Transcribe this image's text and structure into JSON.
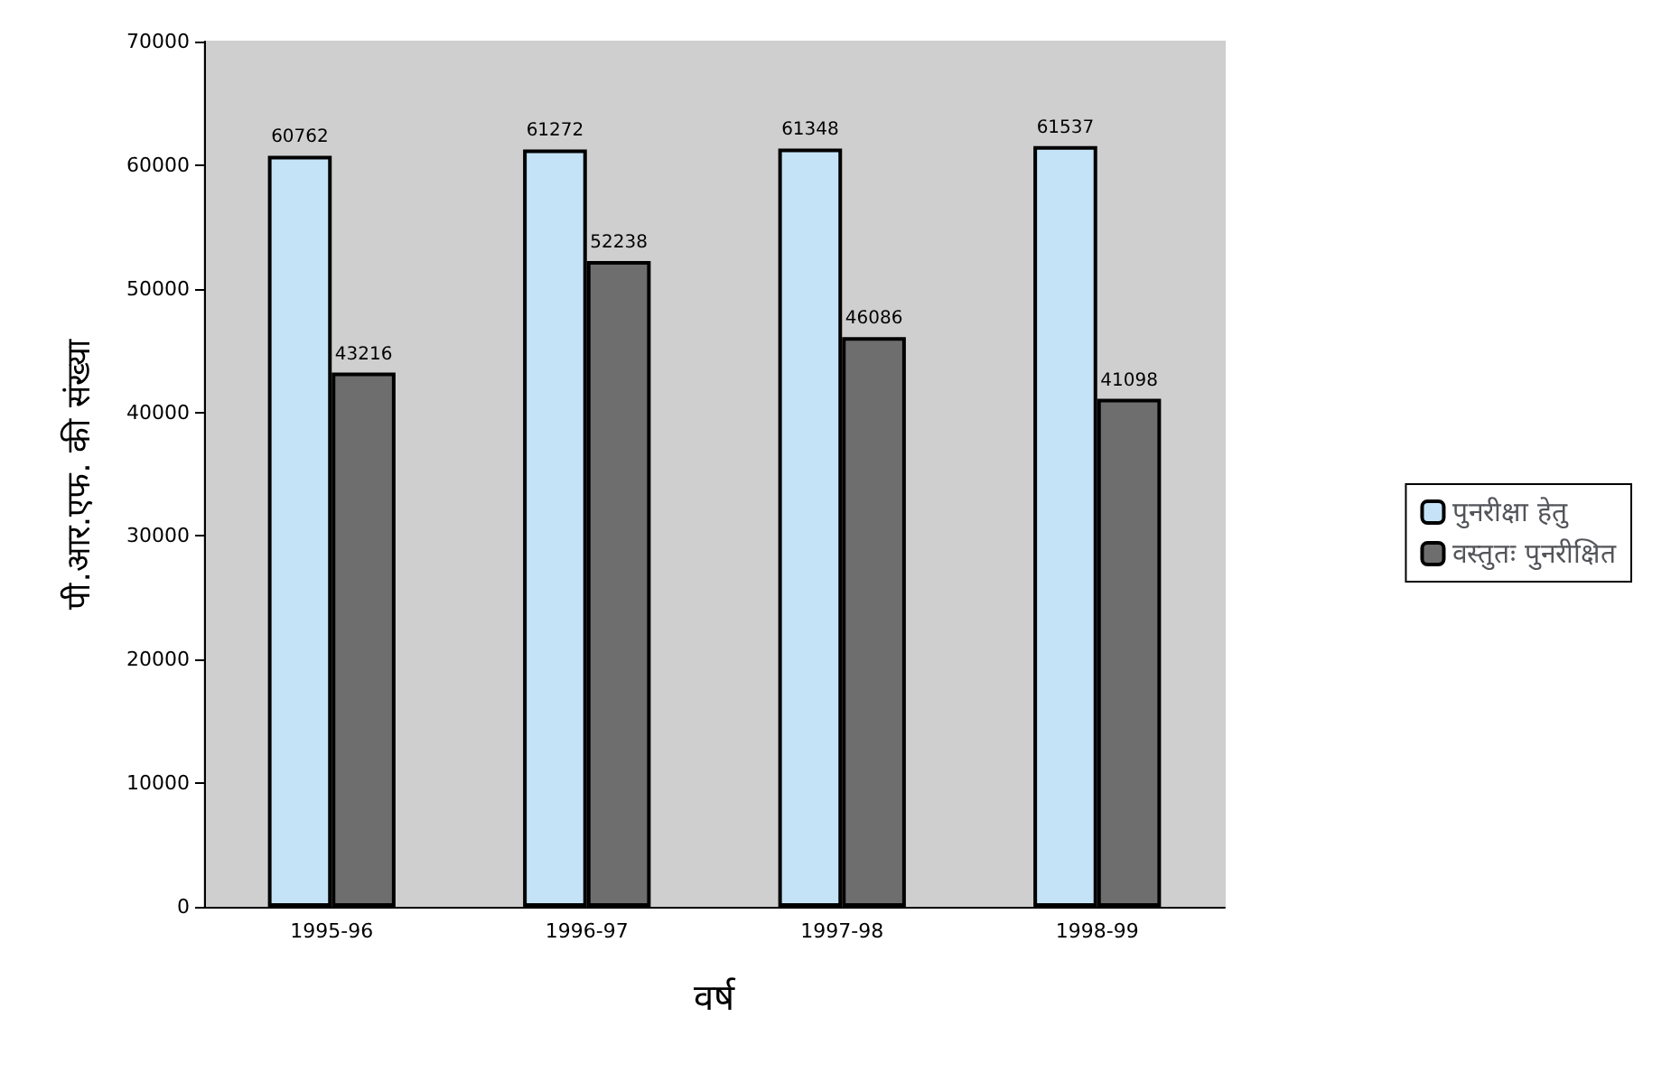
{
  "chart_data": {
    "type": "bar",
    "xlabel": "वर्ष",
    "ylabel": "पी.आर.एफ. की संख्या",
    "categories": [
      "1995-96",
      "1996-97",
      "1997-98",
      "1998-99"
    ],
    "series": [
      {
        "name": "पुनरीक्षा हेतु",
        "color": "#c5e3f6",
        "values": [
          60762,
          61272,
          61348,
          61537
        ]
      },
      {
        "name": "वस्तुतः पुनरीक्षित",
        "color": "#6e6e6e",
        "values": [
          43216,
          52238,
          46086,
          41098
        ]
      }
    ],
    "ylim": [
      0,
      70000
    ],
    "yticks": [
      0,
      10000,
      20000,
      30000,
      40000,
      50000,
      60000,
      70000
    ],
    "grid": false,
    "legend": "right",
    "data_labels": true
  }
}
